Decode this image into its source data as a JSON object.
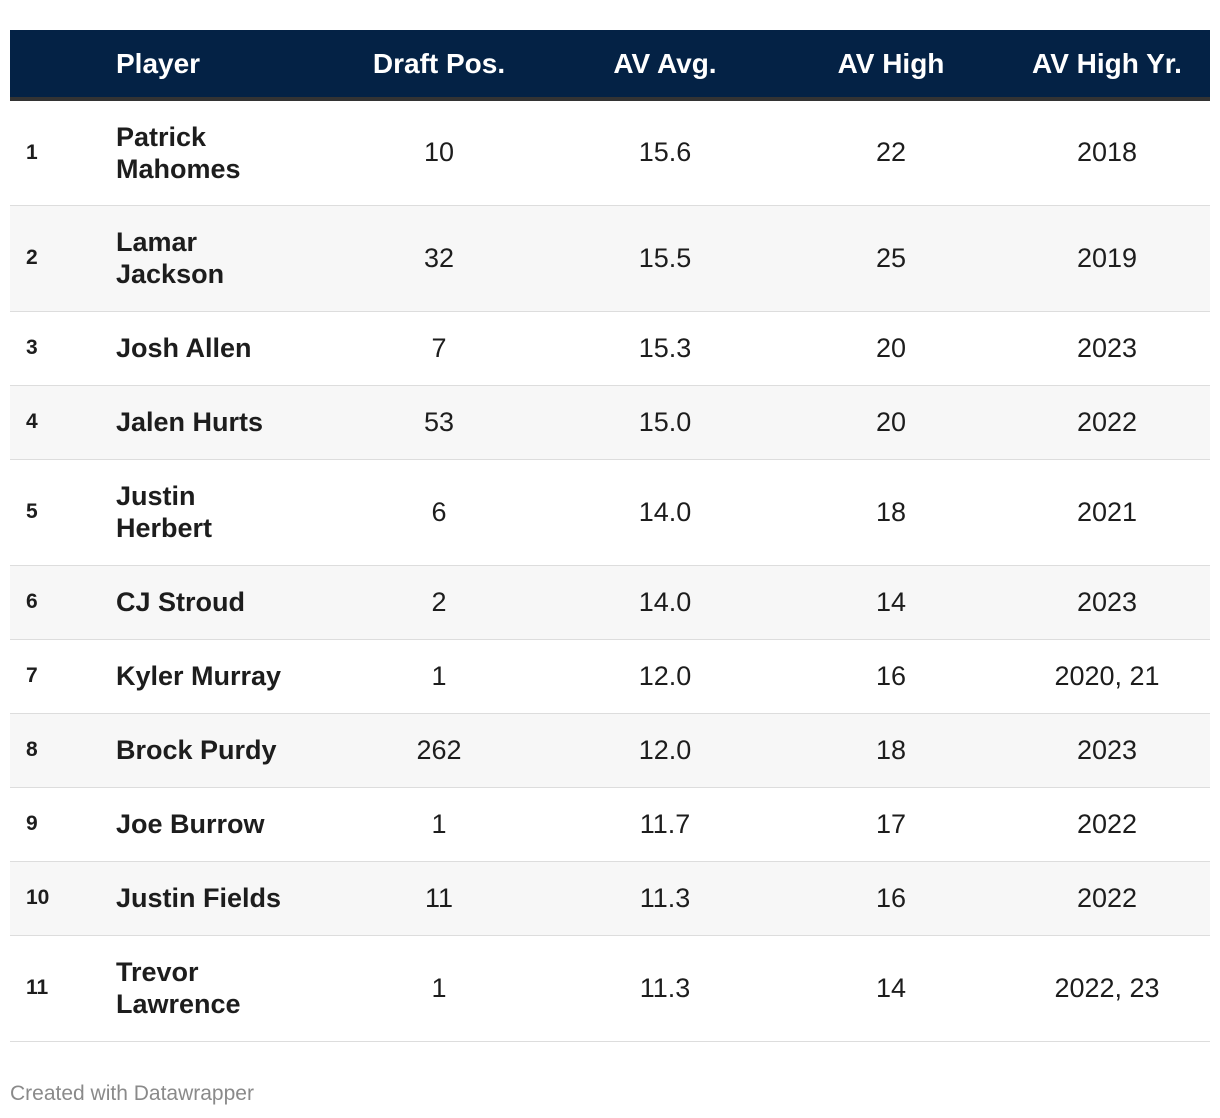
{
  "chart_data": {
    "type": "table",
    "columns": [
      "",
      "Player",
      "Draft Pos.",
      "AV Avg.",
      "AV High",
      "AV High Yr."
    ],
    "rows": [
      {
        "rank": "1",
        "player": "Patrick Mahomes",
        "draft_pos": "10",
        "av_avg": "15.6",
        "av_high": "22",
        "av_high_yr": "2018"
      },
      {
        "rank": "2",
        "player": "Lamar Jackson",
        "draft_pos": "32",
        "av_avg": "15.5",
        "av_high": "25",
        "av_high_yr": "2019"
      },
      {
        "rank": "3",
        "player": "Josh Allen",
        "draft_pos": "7",
        "av_avg": "15.3",
        "av_high": "20",
        "av_high_yr": "2023"
      },
      {
        "rank": "4",
        "player": "Jalen Hurts",
        "draft_pos": "53",
        "av_avg": "15.0",
        "av_high": "20",
        "av_high_yr": "2022"
      },
      {
        "rank": "5",
        "player": "Justin Herbert",
        "draft_pos": "6",
        "av_avg": "14.0",
        "av_high": "18",
        "av_high_yr": "2021"
      },
      {
        "rank": "6",
        "player": "CJ Stroud",
        "draft_pos": "2",
        "av_avg": "14.0",
        "av_high": "14",
        "av_high_yr": "2023"
      },
      {
        "rank": "7",
        "player": "Kyler Murray",
        "draft_pos": "1",
        "av_avg": "12.0",
        "av_high": "16",
        "av_high_yr": "2020, 21"
      },
      {
        "rank": "8",
        "player": "Brock Purdy",
        "draft_pos": "262",
        "av_avg": "12.0",
        "av_high": "18",
        "av_high_yr": "2023"
      },
      {
        "rank": "9",
        "player": "Joe Burrow",
        "draft_pos": "1",
        "av_avg": "11.7",
        "av_high": "17",
        "av_high_yr": "2022"
      },
      {
        "rank": "10",
        "player": "Justin Fields",
        "draft_pos": "11",
        "av_avg": "11.3",
        "av_high": "16",
        "av_high_yr": "2022"
      },
      {
        "rank": "11",
        "player": "Trevor Lawrence",
        "draft_pos": "1",
        "av_avg": "11.3",
        "av_high": "14",
        "av_high_yr": "2022, 23"
      }
    ],
    "header_color": "#042245",
    "header_text_color": "#ffffff"
  },
  "footer": {
    "credit": "Created with Datawrapper"
  }
}
